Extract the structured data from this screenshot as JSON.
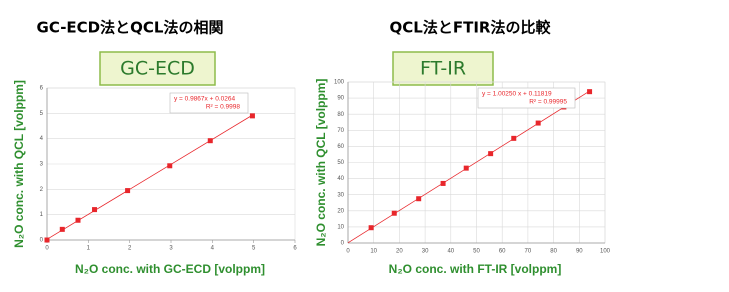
{
  "chart_data": [
    {
      "type": "scatter",
      "title": "GC-ECD法とQCL法の相関",
      "badge": "GC-ECD",
      "xlabel": "N₂O conc. with GC-ECD [volppm]",
      "ylabel": "N₂O conc. with QCL [volppm]",
      "x": [
        0,
        0.37,
        0.75,
        1.15,
        1.95,
        2.97,
        3.95,
        4.97
      ],
      "values": [
        0,
        0.42,
        0.78,
        1.2,
        1.95,
        2.93,
        3.92,
        4.9
      ],
      "color": "#e8262b",
      "fit": {
        "slope": 0.9867,
        "intercept": 0.0264,
        "equation": "y = 0.9867x + 0.0264",
        "r2": "R² = 0.9998"
      },
      "xlim": [
        0,
        6
      ],
      "ylim": [
        0,
        6
      ],
      "xticks": [
        0,
        1,
        2,
        3,
        4,
        5,
        6
      ],
      "yticks": [
        0,
        1,
        2,
        3,
        4,
        5,
        6
      ],
      "grid": "y"
    },
    {
      "type": "scatter",
      "title": "QCL法とFTIR法の比較",
      "badge": "FT-IR",
      "xlabel": "N₂O conc. with FT-IR [volppm]",
      "ylabel": "N₂O conc. with QCL [volppm]",
      "x": [
        9,
        18,
        27.5,
        37,
        46,
        55.5,
        64.5,
        74,
        84,
        94
      ],
      "values": [
        9.5,
        18.5,
        27.5,
        37,
        46.5,
        55.5,
        65,
        74.5,
        84.5,
        94
      ],
      "color": "#e8262b",
      "fit": {
        "slope": 1.0025,
        "intercept": 0.11819,
        "equation": "y = 1.00250 x + 0.11819",
        "r2": "R² = 0.99995"
      },
      "xlim": [
        0,
        100
      ],
      "ylim": [
        0,
        100
      ],
      "xticks": [
        0,
        10,
        20,
        30,
        40,
        50,
        60,
        70,
        80,
        90,
        100
      ],
      "yticks": [
        0,
        10,
        20,
        30,
        40,
        50,
        60,
        70,
        80,
        90,
        100
      ],
      "grid": "both"
    }
  ]
}
